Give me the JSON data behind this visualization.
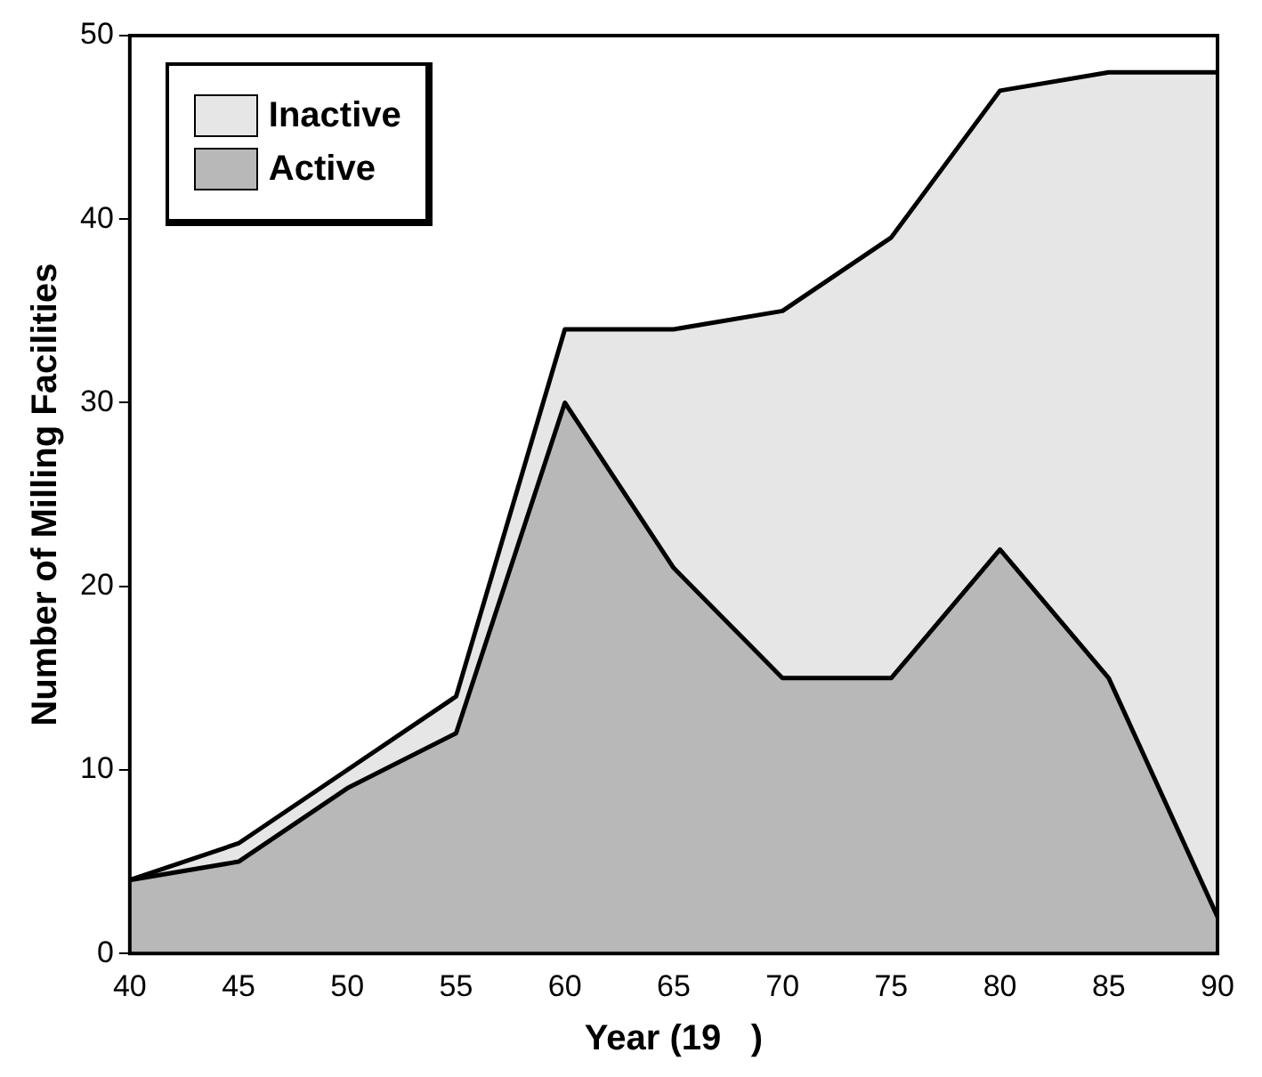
{
  "chart_data": {
    "type": "area",
    "xlabel": "Year (19   )",
    "ylabel": "Number of Milling Facilities",
    "x": [
      40,
      45,
      50,
      55,
      60,
      65,
      70,
      75,
      80,
      85,
      90
    ],
    "stacked": true,
    "series": [
      {
        "name": "Active",
        "color": "#b8b8b8",
        "values": [
          4,
          5,
          9,
          12,
          30,
          21,
          15,
          15,
          22,
          15,
          2
        ]
      },
      {
        "name": "Inactive",
        "color": "#e6e6e6",
        "values": [
          0,
          1,
          1,
          2,
          4,
          13,
          20,
          24,
          25,
          33,
          46
        ]
      }
    ],
    "xlim": [
      40,
      90
    ],
    "xticks": [
      40,
      45,
      50,
      55,
      60,
      65,
      70,
      75,
      80,
      85,
      90
    ],
    "ylim": [
      0,
      50
    ],
    "yticks": [
      0,
      10,
      20,
      30,
      40,
      50
    ],
    "grid": false,
    "legend": "top left",
    "marker": "none",
    "line_style": "solid"
  }
}
